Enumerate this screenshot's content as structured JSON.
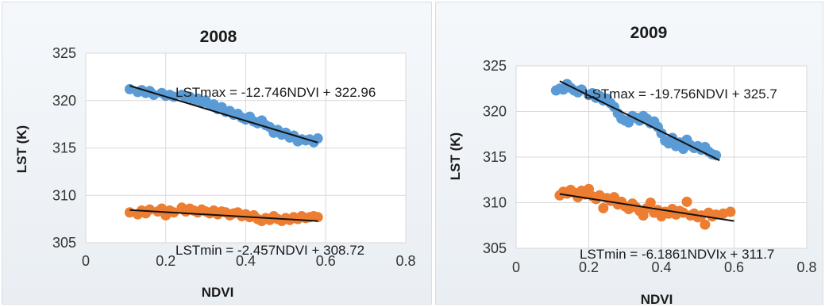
{
  "colors": {
    "max_series": "#5b9bd5",
    "min_series": "#ed7d31",
    "trend": "#111111",
    "grid": "#d9d9d9"
  },
  "chart_data": [
    {
      "type": "scatter",
      "title": "2008",
      "xlabel": "NDVI",
      "ylabel": "LST  (K)",
      "xlim": [
        0,
        0.8
      ],
      "ylim": [
        305,
        325
      ],
      "xticks": [
        "0",
        "0.2",
        "0.4",
        "0.6",
        "0.8"
      ],
      "yticks": [
        "305",
        "310",
        "315",
        "320",
        "325"
      ],
      "grid": true,
      "series": [
        {
          "role": "max",
          "x": [
            0.11,
            0.13,
            0.14,
            0.15,
            0.16,
            0.17,
            0.19,
            0.2,
            0.21,
            0.22,
            0.24,
            0.25,
            0.26,
            0.27,
            0.28,
            0.29,
            0.3,
            0.31,
            0.32,
            0.33,
            0.34,
            0.35,
            0.36,
            0.37,
            0.38,
            0.39,
            0.4,
            0.41,
            0.42,
            0.43,
            0.44,
            0.45,
            0.46,
            0.47,
            0.48,
            0.49,
            0.5,
            0.51,
            0.52,
            0.53,
            0.54,
            0.55,
            0.56,
            0.57,
            0.58
          ],
          "y": [
            321.2,
            320.9,
            321.1,
            320.8,
            321.0,
            320.6,
            320.8,
            320.5,
            320.6,
            320.4,
            320.6,
            320.3,
            320.4,
            320.0,
            320.2,
            319.8,
            320.0,
            319.5,
            319.6,
            319.1,
            319.3,
            318.8,
            318.9,
            318.5,
            318.6,
            318.2,
            318.0,
            318.3,
            317.8,
            317.6,
            317.9,
            317.4,
            317.2,
            316.6,
            316.9,
            316.4,
            316.6,
            316.1,
            316.3,
            315.7,
            315.9,
            315.8,
            315.9,
            315.6,
            316.0
          ],
          "trend": {
            "label": "LSTmax = -12.746NDVI + 322.96",
            "slope": -12.746,
            "intercept": 322.96,
            "x_range": [
              0.11,
              0.58
            ]
          }
        },
        {
          "role": "min",
          "x": [
            0.11,
            0.13,
            0.14,
            0.15,
            0.16,
            0.18,
            0.19,
            0.2,
            0.21,
            0.22,
            0.24,
            0.25,
            0.26,
            0.27,
            0.28,
            0.29,
            0.3,
            0.31,
            0.32,
            0.33,
            0.34,
            0.35,
            0.36,
            0.37,
            0.38,
            0.39,
            0.4,
            0.41,
            0.42,
            0.43,
            0.44,
            0.45,
            0.46,
            0.47,
            0.48,
            0.49,
            0.5,
            0.51,
            0.52,
            0.53,
            0.54,
            0.55,
            0.56,
            0.57,
            0.58
          ],
          "y": [
            308.2,
            308.0,
            308.4,
            308.1,
            308.5,
            308.3,
            308.6,
            307.9,
            308.4,
            308.2,
            308.7,
            308.3,
            308.6,
            308.4,
            308.2,
            308.5,
            308.3,
            308.1,
            308.4,
            308.0,
            308.3,
            308.2,
            307.9,
            308.1,
            308.2,
            307.8,
            308.0,
            307.7,
            307.9,
            307.5,
            307.3,
            307.6,
            307.4,
            307.8,
            307.5,
            307.3,
            307.6,
            307.4,
            307.7,
            307.5,
            307.8,
            307.6,
            307.7,
            307.8,
            307.7
          ],
          "trend": {
            "label": "LSTmin = -2.457NDVI + 308.72",
            "slope": -2.457,
            "intercept": 308.72,
            "x_range": [
              0.11,
              0.58
            ]
          }
        }
      ]
    },
    {
      "type": "scatter",
      "title": "2009",
      "xlabel": "NDVI",
      "ylabel": "LST  (K)",
      "xlim": [
        0,
        0.8
      ],
      "ylim": [
        305,
        325
      ],
      "xticks": [
        "0",
        "0.2",
        "0.4",
        "0.6",
        "0.8"
      ],
      "yticks": [
        "305",
        "310",
        "315",
        "320",
        "325"
      ],
      "grid": true,
      "series": [
        {
          "role": "max",
          "x": [
            0.11,
            0.12,
            0.13,
            0.14,
            0.15,
            0.16,
            0.17,
            0.18,
            0.2,
            0.21,
            0.22,
            0.23,
            0.24,
            0.25,
            0.26,
            0.27,
            0.28,
            0.29,
            0.3,
            0.31,
            0.32,
            0.33,
            0.34,
            0.35,
            0.36,
            0.37,
            0.38,
            0.39,
            0.4,
            0.41,
            0.42,
            0.43,
            0.44,
            0.45,
            0.46,
            0.47,
            0.48,
            0.49,
            0.5,
            0.51,
            0.52,
            0.53,
            0.54,
            0.55
          ],
          "y": [
            322.3,
            322.5,
            322.4,
            323.0,
            322.6,
            322.3,
            322.1,
            322.4,
            321.8,
            322.0,
            321.5,
            321.7,
            321.2,
            321.4,
            320.9,
            320.5,
            319.8,
            319.2,
            319.0,
            318.8,
            319.5,
            319.3,
            319.0,
            319.5,
            319.2,
            318.7,
            318.9,
            318.3,
            317.6,
            316.8,
            316.5,
            317.1,
            316.2,
            316.6,
            315.9,
            316.9,
            316.3,
            316.0,
            316.2,
            315.8,
            316.1,
            315.6,
            315.3,
            315.2
          ],
          "trend": {
            "label": "LSTmax = -19.756NDVI + 325.7",
            "slope": -19.756,
            "intercept": 325.7,
            "x_range": [
              0.12,
              0.56
            ]
          }
        },
        {
          "role": "min",
          "x": [
            0.12,
            0.13,
            0.14,
            0.15,
            0.16,
            0.17,
            0.18,
            0.19,
            0.2,
            0.21,
            0.22,
            0.23,
            0.24,
            0.25,
            0.26,
            0.27,
            0.28,
            0.29,
            0.3,
            0.31,
            0.32,
            0.33,
            0.34,
            0.35,
            0.36,
            0.37,
            0.38,
            0.39,
            0.4,
            0.41,
            0.42,
            0.43,
            0.44,
            0.45,
            0.46,
            0.47,
            0.48,
            0.49,
            0.5,
            0.51,
            0.52,
            0.53,
            0.54,
            0.55,
            0.57,
            0.59
          ],
          "y": [
            310.8,
            311.2,
            311.0,
            311.4,
            311.1,
            310.6,
            311.3,
            310.9,
            311.5,
            310.7,
            310.4,
            310.8,
            309.4,
            310.5,
            310.2,
            310.6,
            309.8,
            310.1,
            309.6,
            309.3,
            309.9,
            309.5,
            309.1,
            308.6,
            309.4,
            310.0,
            308.9,
            309.2,
            308.5,
            309.0,
            308.8,
            309.3,
            308.7,
            309.1,
            308.9,
            310.1,
            308.6,
            308.8,
            308.4,
            308.6,
            307.6,
            308.9,
            308.5,
            308.7,
            308.8,
            309.0
          ],
          "trend": {
            "label": "LSTmin = -6.1861NDVIx + 311.7",
            "slope": -6.1861,
            "intercept": 311.7,
            "x_range": [
              0.12,
              0.6
            ]
          }
        }
      ]
    }
  ]
}
